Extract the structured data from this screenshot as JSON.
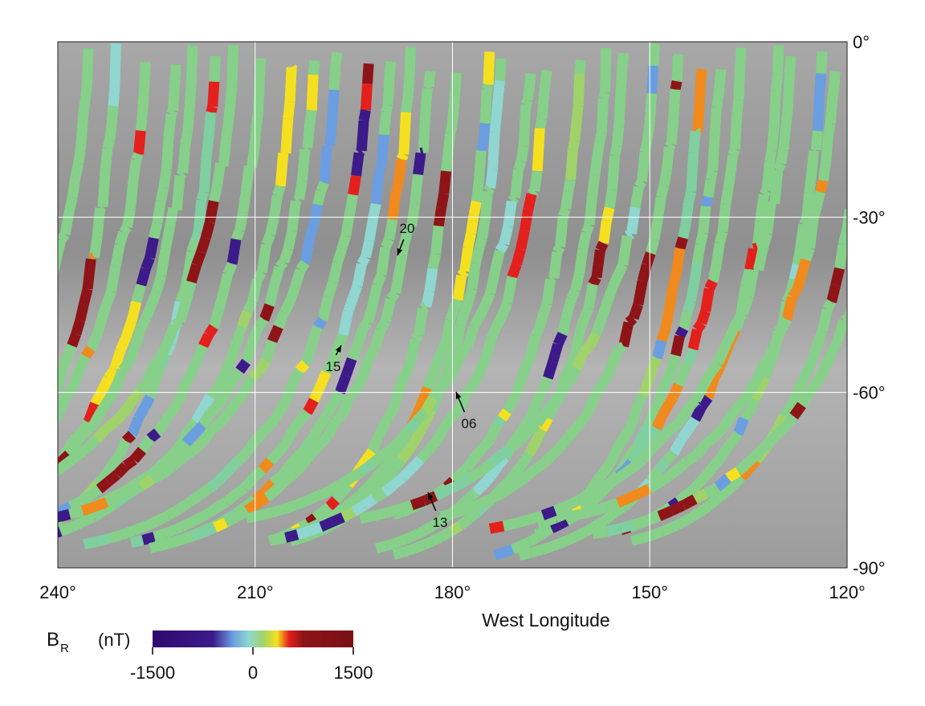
{
  "chart_data": {
    "type": "map",
    "xlabel": "West Longitude",
    "xlim": [
      240,
      120
    ],
    "xticks": [
      {
        "value": 240,
        "label": "240°"
      },
      {
        "value": 210,
        "label": "210°"
      },
      {
        "value": 180,
        "label": "180°"
      },
      {
        "value": 150,
        "label": "150°"
      },
      {
        "value": 120,
        "label": "120°"
      }
    ],
    "ylim": [
      0,
      -90
    ],
    "yticks": [
      {
        "value": 0,
        "label": "0°"
      },
      {
        "value": -30,
        "label": "-30°"
      },
      {
        "value": -60,
        "label": "-60°"
      },
      {
        "value": -90,
        "label": "-90°"
      }
    ],
    "grid": true,
    "annotations": [
      "20",
      "15",
      "06",
      "13"
    ],
    "colorbar": {
      "symbol": "B",
      "subscript": "R",
      "unit": "(nT)",
      "lim": [
        -1500,
        1500
      ],
      "ticks": [
        -1500,
        0,
        1500
      ]
    }
  }
}
